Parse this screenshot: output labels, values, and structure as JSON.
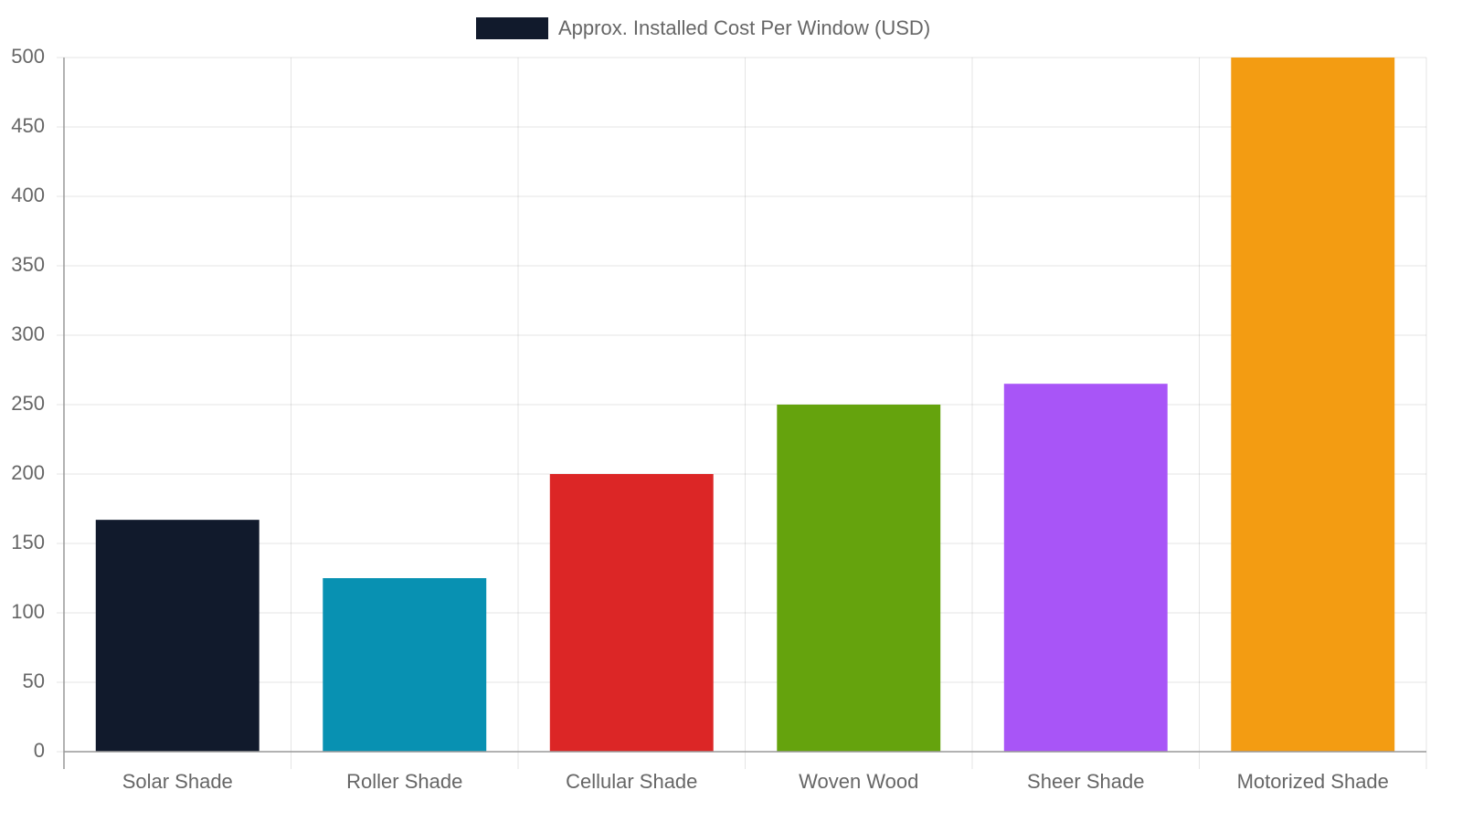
{
  "chart_data": {
    "type": "bar",
    "categories": [
      "Solar Shade",
      "Roller Shade",
      "Cellular Shade",
      "Woven Wood",
      "Sheer Shade",
      "Motorized Shade"
    ],
    "series": [
      {
        "name": "Approx. Installed Cost Per Window (USD)",
        "color": "#111a2c",
        "bar_colors": [
          "#111a2c",
          "#0891b2",
          "#dc2626",
          "#65a30d",
          "#a855f7",
          "#f39c12"
        ],
        "values": [
          167,
          125,
          200,
          250,
          265,
          500
        ]
      }
    ],
    "ylim": [
      0,
      500
    ],
    "yticks": [
      0,
      50,
      100,
      150,
      200,
      250,
      300,
      350,
      400,
      450,
      500
    ],
    "grid": true,
    "legend": "top"
  }
}
